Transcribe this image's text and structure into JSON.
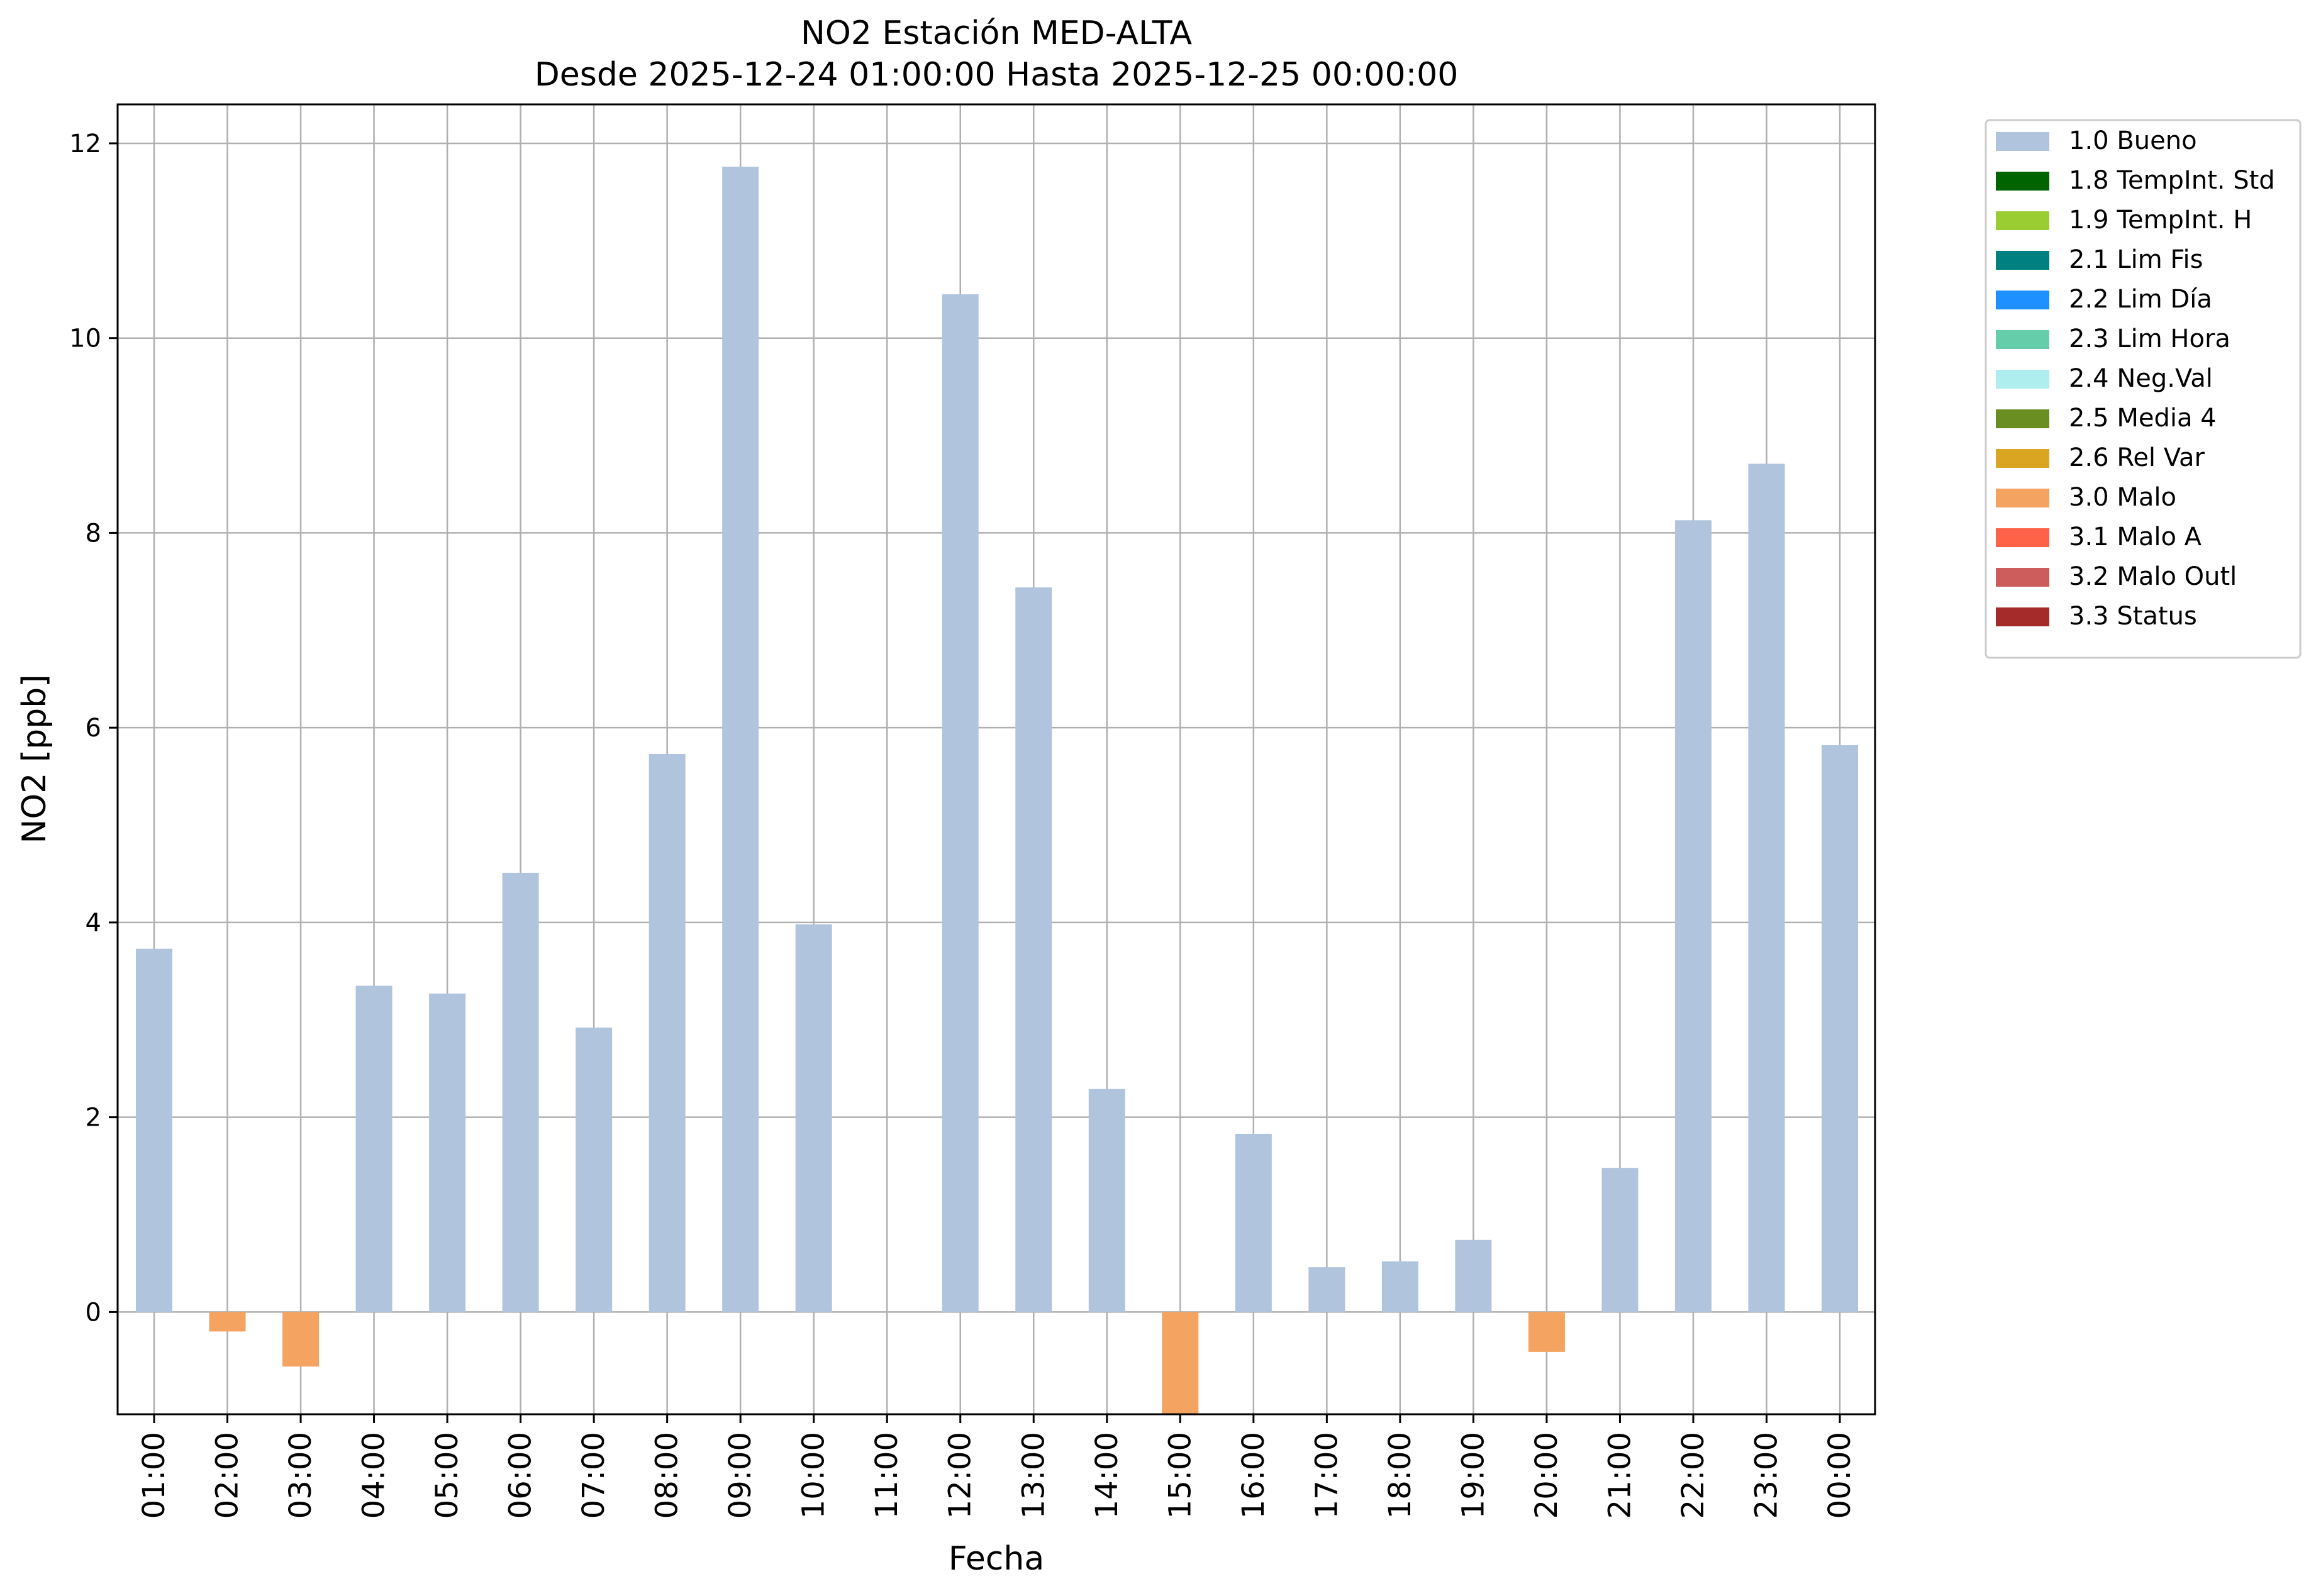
{
  "chart_data": {
    "type": "bar",
    "title_line1": "NO2 Estación MED-ALTA",
    "title_line2": "Desde 2025-12-24 01:00:00 Hasta 2025-12-25 00:00:00",
    "xlabel": "Fecha",
    "ylabel": "NO2 [ppb]",
    "ylim": [
      -1.05,
      12.4
    ],
    "yticks": [
      0,
      2,
      4,
      6,
      8,
      10,
      12
    ],
    "grid": true,
    "legend_position": "outside-top-right",
    "categories": [
      "01:00",
      "02:00",
      "03:00",
      "04:00",
      "05:00",
      "06:00",
      "07:00",
      "08:00",
      "09:00",
      "10:00",
      "11:00",
      "12:00",
      "13:00",
      "14:00",
      "15:00",
      "16:00",
      "17:00",
      "18:00",
      "19:00",
      "20:00",
      "21:00",
      "22:00",
      "23:00",
      "00:00"
    ],
    "values": [
      3.73,
      -0.2,
      -0.56,
      3.35,
      3.27,
      4.51,
      2.92,
      5.73,
      11.76,
      3.98,
      null,
      10.45,
      7.44,
      2.29,
      -1.05,
      1.83,
      0.46,
      0.52,
      0.74,
      -0.41,
      1.48,
      8.13,
      8.71,
      5.82
    ],
    "flags": [
      "1.0 Bueno",
      "3.0 Malo",
      "3.0 Malo",
      "1.0 Bueno",
      "1.0 Bueno",
      "1.0 Bueno",
      "1.0 Bueno",
      "1.0 Bueno",
      "1.0 Bueno",
      "1.0 Bueno",
      null,
      "1.0 Bueno",
      "1.0 Bueno",
      "1.0 Bueno",
      "3.0 Malo",
      "1.0 Bueno",
      "1.0 Bueno",
      "1.0 Bueno",
      "1.0 Bueno",
      "3.0 Malo",
      "1.0 Bueno",
      "1.0 Bueno",
      "1.0 Bueno",
      "1.0 Bueno"
    ],
    "legend": [
      {
        "name": "1.0 Bueno",
        "color": "#b0c4de"
      },
      {
        "name": "1.8 TempInt. Std",
        "color": "#006400"
      },
      {
        "name": "1.9 TempInt. H",
        "color": "#9acd32"
      },
      {
        "name": "2.1 Lim Fis",
        "color": "#008080"
      },
      {
        "name": "2.2 Lim Día",
        "color": "#1e90ff"
      },
      {
        "name": "2.3 Lim Hora",
        "color": "#66cdaa"
      },
      {
        "name": "2.4 Neg.Val",
        "color": "#afeeee"
      },
      {
        "name": "2.5 Media 4",
        "color": "#6b8e23"
      },
      {
        "name": "2.6 Rel Var",
        "color": "#daa520"
      },
      {
        "name": "3.0 Malo",
        "color": "#f4a460"
      },
      {
        "name": "3.1 Malo A",
        "color": "#ff6347"
      },
      {
        "name": "3.2 Malo Outl",
        "color": "#cd5c5c"
      },
      {
        "name": "3.3 Status",
        "color": "#a52a2a"
      }
    ]
  }
}
